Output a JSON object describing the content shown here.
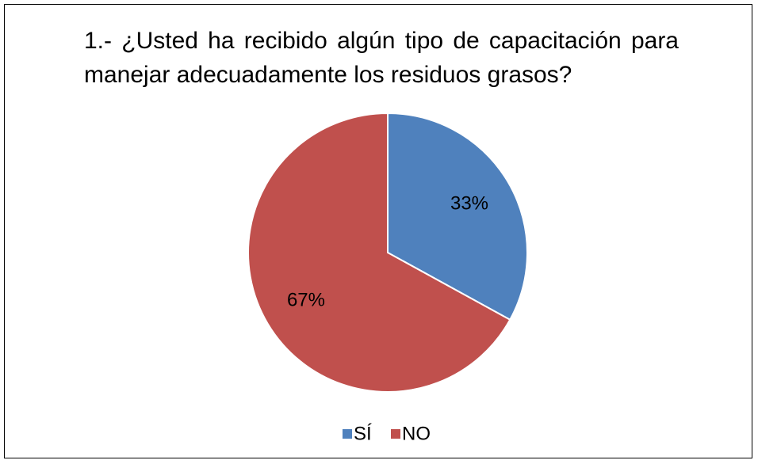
{
  "chart_data": {
    "type": "pie",
    "title": "1.- ¿Usted ha recibido algún tipo de capacitación para manejar adecuadamente los residuos grasos?",
    "categories": [
      "SÍ",
      "NO"
    ],
    "values": [
      33,
      67
    ],
    "value_labels": [
      "33%",
      "67%"
    ],
    "colors": [
      "#4f81bd",
      "#c0504d"
    ],
    "legend": "bottom"
  }
}
